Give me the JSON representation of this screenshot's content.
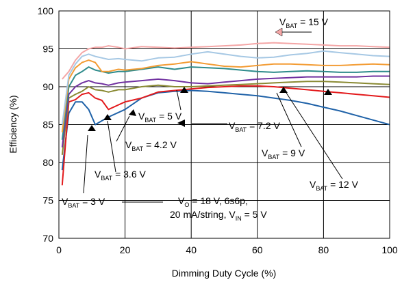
{
  "chart_data": {
    "type": "line",
    "title": "",
    "xlabel": "Dimming Duty Cycle (%)",
    "ylabel": "Efficiency (%)",
    "xlim": [
      0,
      100
    ],
    "ylim": [
      70,
      100
    ],
    "xticks": [
      0,
      20,
      40,
      60,
      80,
      100
    ],
    "yticks": [
      70,
      75,
      80,
      85,
      90,
      95,
      100
    ],
    "grid": true,
    "legend": "inline labels with arrows",
    "series": [
      {
        "name": "VBAT = 3 V",
        "color": "#1f62a8",
        "x": [
          1,
          3,
          5,
          7,
          9,
          11,
          13,
          15,
          20,
          25,
          30,
          35,
          40,
          45,
          50,
          55,
          60,
          65,
          70,
          75,
          80,
          85,
          90,
          95,
          100
        ],
        "y": [
          79,
          86.5,
          88,
          88,
          87,
          85,
          85.5,
          86,
          87,
          88.5,
          89.2,
          89.4,
          89.5,
          89.4,
          89.2,
          89,
          88.8,
          88.5,
          88.2,
          87.8,
          87.3,
          86.8,
          86.2,
          85.6,
          85
        ]
      },
      {
        "name": "VBAT = 3.6 V",
        "color": "#e31a1c",
        "x": [
          1,
          3,
          5,
          7,
          9,
          11,
          13,
          15,
          18,
          20,
          25,
          30,
          35,
          40,
          45,
          50,
          55,
          60,
          65,
          70,
          75,
          80,
          85,
          90,
          95,
          100
        ],
        "y": [
          77,
          88,
          88.3,
          89,
          89.2,
          88.5,
          88.2,
          87,
          87.6,
          88,
          88.5,
          89.3,
          89.5,
          89.7,
          89.9,
          90,
          90.1,
          90.1,
          90,
          89.8,
          89.6,
          89.4,
          89.2,
          89,
          88.8,
          88.6
        ]
      },
      {
        "name": "VBAT = 4.2 V",
        "color": "#8a8a33",
        "x": [
          1,
          3,
          5,
          7,
          9,
          11,
          13,
          15,
          18,
          20,
          25,
          30,
          35,
          40,
          45,
          50,
          55,
          60,
          65,
          70,
          75,
          80,
          85,
          90,
          95,
          100
        ],
        "y": [
          81,
          88.5,
          89,
          89.4,
          90,
          89.6,
          89.5,
          89.3,
          89.6,
          89.6,
          90,
          90.2,
          90,
          90,
          90.1,
          90.2,
          90.3,
          90.4,
          90.5,
          90.6,
          90.7,
          90.7,
          90.6,
          90.5,
          90.4,
          90.3
        ]
      },
      {
        "name": "VBAT = 5 V",
        "color": "#7030a0",
        "x": [
          1,
          3,
          5,
          7,
          9,
          11,
          13,
          15,
          18,
          20,
          25,
          30,
          35,
          40,
          45,
          50,
          55,
          60,
          65,
          70,
          75,
          80,
          85,
          90,
          95,
          100
        ],
        "y": [
          82,
          89,
          90,
          90.5,
          90.8,
          90.5,
          90.4,
          90.2,
          90.5,
          90.6,
          90.8,
          91,
          90.8,
          90.5,
          90.4,
          90.6,
          90.8,
          91,
          91.1,
          91.2,
          91.3,
          91.3,
          91.3,
          91.3,
          91.4,
          91.4
        ]
      },
      {
        "name": "VBAT = 7.2 V",
        "color": "#2e8b8b",
        "x": [
          1,
          3,
          5,
          7,
          9,
          11,
          13,
          15,
          18,
          20,
          25,
          30,
          35,
          40,
          45,
          50,
          55,
          60,
          65,
          70,
          75,
          80,
          85,
          90,
          95,
          100
        ],
        "y": [
          83,
          90,
          91.5,
          92,
          92.6,
          92.2,
          92,
          91.8,
          92,
          92,
          92.3,
          92.6,
          92.3,
          92.6,
          92.5,
          92.4,
          92.2,
          92,
          91.9,
          92,
          92.1,
          92,
          91.9,
          91.9,
          92,
          92
        ]
      },
      {
        "name": "VBAT = 9 V",
        "color": "#f39c34",
        "x": [
          1,
          3,
          5,
          7,
          9,
          11,
          13,
          15,
          18,
          20,
          25,
          30,
          35,
          40,
          45,
          50,
          55,
          60,
          65,
          70,
          75,
          80,
          85,
          90,
          95,
          100
        ],
        "y": [
          84,
          91,
          92.5,
          93.2,
          93.5,
          93.2,
          92,
          92,
          92.3,
          92.2,
          92.4,
          92.8,
          93,
          93.3,
          93,
          92.7,
          92.6,
          92.8,
          93,
          93,
          92.9,
          92.8,
          92.8,
          92.9,
          93,
          92.9
        ]
      },
      {
        "name": "VBAT = 12 V",
        "color": "#a6c8e4",
        "x": [
          1,
          3,
          5,
          7,
          9,
          11,
          13,
          15,
          18,
          20,
          25,
          30,
          35,
          40,
          45,
          50,
          55,
          60,
          65,
          70,
          75,
          80,
          85,
          90,
          95,
          100
        ],
        "y": [
          85,
          91.5,
          93,
          94,
          94.3,
          94,
          93.8,
          93.6,
          93.7,
          93.6,
          93.4,
          93.8,
          93.9,
          94.3,
          94.6,
          94.3,
          94,
          93.8,
          93.9,
          94.2,
          94.4,
          94.7,
          94.5,
          94.3,
          94.1,
          94
        ]
      },
      {
        "name": "VBAT = 15 V",
        "color": "#f4a6a6",
        "x": [
          1,
          3,
          5,
          7,
          9,
          11,
          13,
          15,
          18,
          20,
          25,
          30,
          35,
          40,
          45,
          50,
          55,
          60,
          65,
          70,
          75,
          80,
          85,
          90,
          95,
          100
        ],
        "y": [
          91,
          92,
          93.5,
          94.5,
          95,
          95.2,
          95.2,
          95.4,
          95.2,
          95,
          95.3,
          95.2,
          95.1,
          95.2,
          95.3,
          95.4,
          95.5,
          95.7,
          95.8,
          95.7,
          95.6,
          95.5,
          95.4,
          95.4,
          95.3,
          95.2
        ]
      }
    ],
    "annotations": {
      "v15": {
        "main": "V",
        "sub": "BAT",
        "rest": " = 15 V"
      },
      "v12": {
        "main": "V",
        "sub": "BAT",
        "rest": " = 12 V"
      },
      "v9": {
        "main": "V",
        "sub": "BAT",
        "rest": " = 9 V"
      },
      "v72": {
        "main": "V",
        "sub": "BAT",
        "rest": " = 7.2 V"
      },
      "v5": {
        "main": "V",
        "sub": "BAT",
        "rest": " = 5 V"
      },
      "v42": {
        "main": "V",
        "sub": "BAT",
        "rest": " = 4.2 V"
      },
      "v36": {
        "main": "V",
        "sub": "BAT",
        "rest": " = 3.6 V"
      },
      "v3": {
        "main": "V",
        "sub": "BAT",
        "rest": " = 3 V"
      },
      "cond1": {
        "main": "V",
        "sub": "O",
        "rest": " = 18 V, 6s6p,"
      },
      "cond2": {
        "main": "20 mA/string, V",
        "sub": "IN",
        "rest": " = 5 V"
      }
    }
  }
}
